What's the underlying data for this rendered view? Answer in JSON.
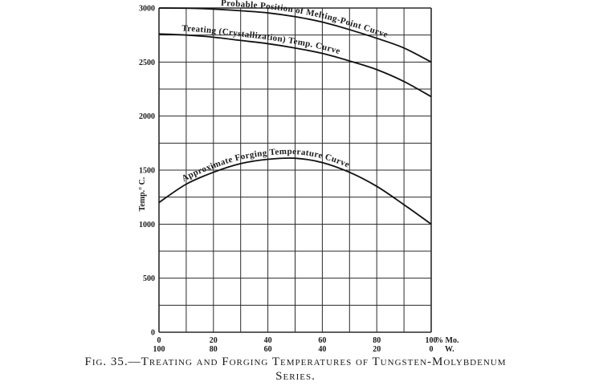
{
  "caption": {
    "line1": "Fig. 35.—Treating and Forging Temperatures of Tungsten-Molybdenum",
    "line2": "Series."
  },
  "chart_data": {
    "type": "line",
    "ylabel": "Temp.° C.",
    "ylim": [
      0,
      3000
    ],
    "xlim": [
      0,
      100
    ],
    "yticks": [
      0,
      500,
      1000,
      1500,
      2000,
      2500,
      3000
    ],
    "x_ticks_mo": [
      "0",
      "20",
      "40",
      "60",
      "80",
      "100"
    ],
    "x_ticks_w": [
      "100",
      "80",
      "60",
      "40",
      "20",
      "0"
    ],
    "x_axis_label_mo": "% Mo.",
    "x_axis_label_w": "W.",
    "grid": true,
    "series": [
      {
        "name": "Probable Position of Melting-Point Curve",
        "x": [
          0,
          10,
          20,
          30,
          40,
          50,
          60,
          70,
          80,
          90,
          100
        ],
        "y": [
          3000,
          2998,
          2990,
          2975,
          2955,
          2920,
          2870,
          2800,
          2720,
          2630,
          2500
        ]
      },
      {
        "name": "Treating (Crystallization) Temp. Curve",
        "x": [
          0,
          10,
          20,
          30,
          40,
          50,
          60,
          70,
          80,
          90,
          100
        ],
        "y": [
          2760,
          2750,
          2730,
          2700,
          2670,
          2630,
          2580,
          2510,
          2430,
          2320,
          2180
        ]
      },
      {
        "name": "Approximate Forging Temperature Curve",
        "x": [
          0,
          10,
          20,
          30,
          40,
          50,
          60,
          70,
          80,
          90,
          100
        ],
        "y": [
          1200,
          1370,
          1480,
          1560,
          1600,
          1610,
          1570,
          1480,
          1350,
          1180,
          1000
        ]
      }
    ]
  }
}
